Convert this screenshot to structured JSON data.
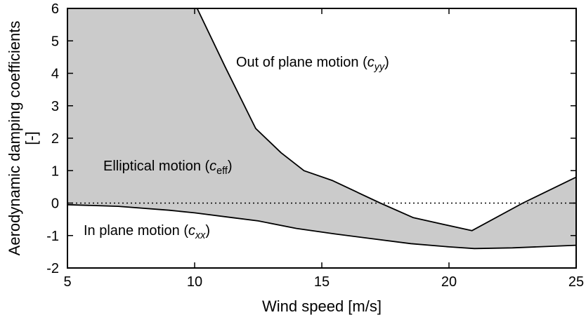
{
  "figure": {
    "background": "#ffffff",
    "fill_color": "#cbcbcb",
    "line_color": "#000000"
  },
  "axes": {
    "x_label": "Wind speed [m/s]",
    "y_label_line1": "Aerodynamic damping coefficients",
    "y_label_line2": "[-]"
  },
  "annotations": [
    {
      "pre": "Out of plane motion (",
      "sym": "c",
      "sub": "yy",
      "post": ")"
    },
    {
      "pre": "Elliptical motion (",
      "sym": "c",
      "sub": "eff",
      "post": ")"
    },
    {
      "pre": "In plane motion (",
      "sym": "c",
      "sub": "xx",
      "post": ")"
    }
  ],
  "chart_data": {
    "type": "area",
    "title": "",
    "xlabel": "Wind speed [m/s]",
    "ylabel": "Aerodynamic damping coefficients [-]",
    "xlim": [
      5,
      25
    ],
    "ylim": [
      -2,
      6
    ],
    "x_ticks": [
      5,
      10,
      15,
      20,
      25
    ],
    "y_ticks": [
      -2,
      -1,
      0,
      1,
      2,
      3,
      4,
      5,
      6
    ],
    "grid": false,
    "legend_position": "inline-annotations",
    "zero_line_y": 0,
    "fill_between": {
      "label": "Elliptical motion (c_eff)",
      "color": "#cbcbcb"
    },
    "series": [
      {
        "name": "Out of plane motion (c_yy)",
        "x": [
          10.1,
          11.2,
          12.4,
          13.4,
          14.3,
          15.4,
          17.3,
          18.6,
          20.9,
          22.9,
          25
        ],
        "y": [
          6.0,
          4.2,
          2.3,
          1.55,
          1.0,
          0.7,
          0.0,
          -0.45,
          -0.85,
          0.0,
          0.8
        ]
      },
      {
        "name": "In plane motion (c_xx)",
        "x": [
          5,
          7,
          9,
          10,
          11.5,
          12.5,
          14,
          15.5,
          17,
          18.5,
          20,
          21,
          22.5,
          25
        ],
        "y": [
          -0.05,
          -0.1,
          -0.22,
          -0.3,
          -0.45,
          -0.55,
          -0.78,
          -0.95,
          -1.1,
          -1.25,
          -1.35,
          -1.4,
          -1.38,
          -1.3
        ]
      }
    ]
  }
}
